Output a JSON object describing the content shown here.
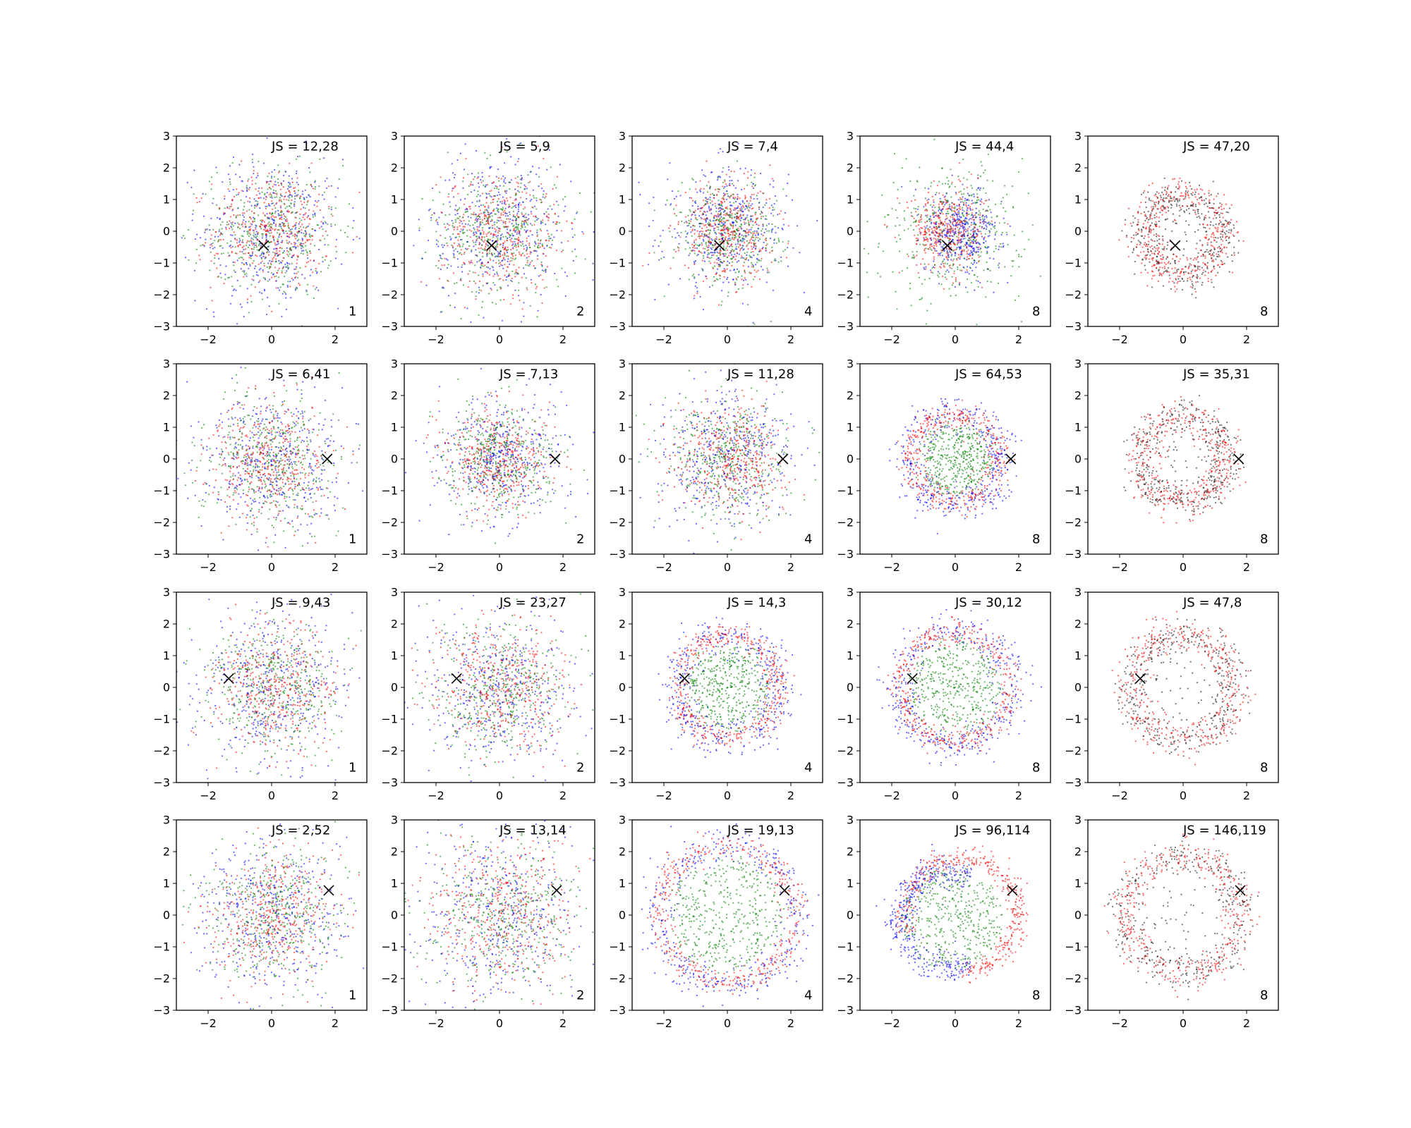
{
  "figure": {
    "colors": {
      "red": "#ff0000",
      "green": "#008000",
      "blue": "#0000ff",
      "black": "#000000",
      "marker": "#000000"
    }
  },
  "chart_data": [
    {
      "type": "scatter",
      "row": 0,
      "col": 0,
      "js_label": "JS = 12,28",
      "corner_label": "1",
      "xlim": [
        -3,
        3
      ],
      "ylim": [
        -3,
        3
      ],
      "xticks": [
        -2,
        0,
        2
      ],
      "yticks": [
        -3,
        -2,
        -1,
        0,
        1,
        2,
        3
      ],
      "marker": {
        "x": -0.25,
        "y": -0.45
      },
      "pattern": {
        "kind": "blob",
        "colors": [
          "red",
          "green",
          "blue"
        ],
        "radius": 1.0,
        "center": [
          0,
          0
        ]
      },
      "series": [
        {
          "color": "red"
        },
        {
          "color": "green"
        },
        {
          "color": "blue"
        }
      ]
    },
    {
      "type": "scatter",
      "row": 0,
      "col": 1,
      "js_label": "JS = 5,9",
      "corner_label": "2",
      "xlim": [
        -3,
        3
      ],
      "ylim": [
        -3,
        3
      ],
      "xticks": [
        -2,
        0,
        2
      ],
      "yticks": [
        -3,
        -2,
        -1,
        0,
        1,
        2,
        3
      ],
      "marker": {
        "x": -0.25,
        "y": -0.45
      },
      "pattern": {
        "kind": "blob",
        "colors": [
          "red",
          "green",
          "blue"
        ],
        "radius": 1.0,
        "center": [
          0,
          0
        ]
      },
      "series": [
        {
          "color": "red"
        },
        {
          "color": "green"
        },
        {
          "color": "blue"
        }
      ]
    },
    {
      "type": "scatter",
      "row": 0,
      "col": 2,
      "js_label": "JS = 7,4",
      "corner_label": "4",
      "xlim": [
        -3,
        3
      ],
      "ylim": [
        -3,
        3
      ],
      "xticks": [
        -2,
        0,
        2
      ],
      "yticks": [
        -3,
        -2,
        -1,
        0,
        1,
        2,
        3
      ],
      "marker": {
        "x": -0.25,
        "y": -0.45
      },
      "pattern": {
        "kind": "blob",
        "colors": [
          "red",
          "green",
          "blue"
        ],
        "radius": 0.8,
        "center": [
          0,
          0
        ]
      },
      "series": [
        {
          "color": "red"
        },
        {
          "color": "green"
        },
        {
          "color": "blue"
        }
      ]
    },
    {
      "type": "scatter",
      "row": 0,
      "col": 3,
      "js_label": "JS = 44,4",
      "corner_label": "8",
      "xlim": [
        -3,
        3
      ],
      "ylim": [
        -3,
        3
      ],
      "xticks": [
        -2,
        0,
        2
      ],
      "yticks": [
        -3,
        -2,
        -1,
        0,
        1,
        2,
        3
      ],
      "marker": {
        "x": -0.25,
        "y": -0.45
      },
      "pattern": {
        "kind": "blob3",
        "colors": [
          "red",
          "green",
          "blue"
        ],
        "radius": 0.9,
        "center": [
          0,
          0
        ]
      },
      "series": [
        {
          "color": "red"
        },
        {
          "color": "green"
        },
        {
          "color": "blue"
        }
      ]
    },
    {
      "type": "scatter",
      "row": 0,
      "col": 4,
      "js_label": "JS = 47,20",
      "corner_label": "8",
      "xlim": [
        -3,
        3
      ],
      "ylim": [
        -3,
        3
      ],
      "xticks": [
        -2,
        0,
        2
      ],
      "yticks": [
        -3,
        -2,
        -1,
        0,
        1,
        2,
        3
      ],
      "marker": {
        "x": -0.25,
        "y": -0.45
      },
      "pattern": {
        "kind": "ring2",
        "colors": [
          "red",
          "black"
        ],
        "radius": 1.25,
        "center": [
          0,
          -0.1
        ]
      },
      "series": [
        {
          "color": "red"
        },
        {
          "color": "black"
        }
      ]
    },
    {
      "type": "scatter",
      "row": 1,
      "col": 0,
      "js_label": "JS = 6,41",
      "corner_label": "1",
      "xlim": [
        -3,
        3
      ],
      "ylim": [
        -3,
        3
      ],
      "xticks": [
        -2,
        0,
        2
      ],
      "yticks": [
        -3,
        -2,
        -1,
        0,
        1,
        2,
        3
      ],
      "marker": {
        "x": 1.75,
        "y": 0.0
      },
      "pattern": {
        "kind": "blob",
        "colors": [
          "red",
          "green",
          "blue"
        ],
        "radius": 1.0,
        "center": [
          0,
          0
        ]
      },
      "series": [
        {
          "color": "red"
        },
        {
          "color": "green"
        },
        {
          "color": "blue"
        }
      ]
    },
    {
      "type": "scatter",
      "row": 1,
      "col": 1,
      "js_label": "JS = 7,13",
      "corner_label": "2",
      "xlim": [
        -3,
        3
      ],
      "ylim": [
        -3,
        3
      ],
      "xticks": [
        -2,
        0,
        2
      ],
      "yticks": [
        -3,
        -2,
        -1,
        0,
        1,
        2,
        3
      ],
      "marker": {
        "x": 1.75,
        "y": 0.0
      },
      "pattern": {
        "kind": "blob",
        "colors": [
          "red",
          "green",
          "blue"
        ],
        "radius": 0.85,
        "center": [
          0,
          0
        ]
      },
      "series": [
        {
          "color": "red"
        },
        {
          "color": "green"
        },
        {
          "color": "blue"
        }
      ]
    },
    {
      "type": "scatter",
      "row": 1,
      "col": 2,
      "js_label": "JS = 11,28",
      "corner_label": "4",
      "xlim": [
        -3,
        3
      ],
      "ylim": [
        -3,
        3
      ],
      "xticks": [
        -2,
        0,
        2
      ],
      "yticks": [
        -3,
        -2,
        -1,
        0,
        1,
        2,
        3
      ],
      "marker": {
        "x": 1.75,
        "y": 0.0
      },
      "pattern": {
        "kind": "blob",
        "colors": [
          "red",
          "green",
          "blue"
        ],
        "radius": 0.95,
        "center": [
          0,
          0
        ]
      },
      "series": [
        {
          "color": "red"
        },
        {
          "color": "green"
        },
        {
          "color": "blue"
        }
      ]
    },
    {
      "type": "scatter",
      "row": 1,
      "col": 3,
      "js_label": "JS = 64,53",
      "corner_label": "8",
      "xlim": [
        -3,
        3
      ],
      "ylim": [
        -3,
        3
      ],
      "xticks": [
        -2,
        0,
        2
      ],
      "yticks": [
        -3,
        -2,
        -1,
        0,
        1,
        2,
        3
      ],
      "marker": {
        "x": 1.75,
        "y": 0.0
      },
      "pattern": {
        "kind": "ring3",
        "colors": [
          "red",
          "green",
          "blue"
        ],
        "radius": 1.35,
        "center": [
          0,
          0
        ]
      },
      "series": [
        {
          "color": "red"
        },
        {
          "color": "green"
        },
        {
          "color": "blue"
        }
      ]
    },
    {
      "type": "scatter",
      "row": 1,
      "col": 4,
      "js_label": "JS = 35,31",
      "corner_label": "8",
      "xlim": [
        -3,
        3
      ],
      "ylim": [
        -3,
        3
      ],
      "xticks": [
        -2,
        0,
        2
      ],
      "yticks": [
        -3,
        -2,
        -1,
        0,
        1,
        2,
        3
      ],
      "marker": {
        "x": 1.75,
        "y": 0.0
      },
      "pattern": {
        "kind": "ring2",
        "colors": [
          "red",
          "black"
        ],
        "radius": 1.35,
        "center": [
          0,
          0
        ]
      },
      "series": [
        {
          "color": "red"
        },
        {
          "color": "black"
        }
      ]
    },
    {
      "type": "scatter",
      "row": 2,
      "col": 0,
      "js_label": "JS = 9,43",
      "corner_label": "1",
      "xlim": [
        -3,
        3
      ],
      "ylim": [
        -3,
        3
      ],
      "xticks": [
        -2,
        0,
        2
      ],
      "yticks": [
        -3,
        -2,
        -1,
        0,
        1,
        2,
        3
      ],
      "marker": {
        "x": -1.35,
        "y": 0.28
      },
      "pattern": {
        "kind": "blob",
        "colors": [
          "red",
          "green",
          "blue"
        ],
        "radius": 1.05,
        "center": [
          0,
          0
        ]
      },
      "series": [
        {
          "color": "red"
        },
        {
          "color": "green"
        },
        {
          "color": "blue"
        }
      ]
    },
    {
      "type": "scatter",
      "row": 2,
      "col": 1,
      "js_label": "JS = 23,27",
      "corner_label": "2",
      "xlim": [
        -3,
        3
      ],
      "ylim": [
        -3,
        3
      ],
      "xticks": [
        -2,
        0,
        2
      ],
      "yticks": [
        -3,
        -2,
        -1,
        0,
        1,
        2,
        3
      ],
      "marker": {
        "x": -1.35,
        "y": 0.28
      },
      "pattern": {
        "kind": "blob",
        "colors": [
          "red",
          "green",
          "blue"
        ],
        "radius": 1.1,
        "center": [
          0,
          0
        ]
      },
      "series": [
        {
          "color": "red"
        },
        {
          "color": "green"
        },
        {
          "color": "blue"
        }
      ]
    },
    {
      "type": "scatter",
      "row": 2,
      "col": 2,
      "js_label": "JS = 14,3",
      "corner_label": "4",
      "xlim": [
        -3,
        3
      ],
      "ylim": [
        -3,
        3
      ],
      "xticks": [
        -2,
        0,
        2
      ],
      "yticks": [
        -3,
        -2,
        -1,
        0,
        1,
        2,
        3
      ],
      "marker": {
        "x": -1.35,
        "y": 0.28
      },
      "pattern": {
        "kind": "ring3",
        "colors": [
          "red",
          "green",
          "blue"
        ],
        "radius": 1.55,
        "center": [
          0,
          0
        ]
      },
      "series": [
        {
          "color": "red"
        },
        {
          "color": "green"
        },
        {
          "color": "blue"
        }
      ]
    },
    {
      "type": "scatter",
      "row": 2,
      "col": 3,
      "js_label": "JS = 30,12",
      "corner_label": "8",
      "xlim": [
        -3,
        3
      ],
      "ylim": [
        -3,
        3
      ],
      "xticks": [
        -2,
        0,
        2
      ],
      "yticks": [
        -3,
        -2,
        -1,
        0,
        1,
        2,
        3
      ],
      "marker": {
        "x": -1.35,
        "y": 0.28
      },
      "pattern": {
        "kind": "ring3",
        "colors": [
          "red",
          "green",
          "blue"
        ],
        "radius": 1.7,
        "center": [
          0,
          0
        ]
      },
      "series": [
        {
          "color": "red"
        },
        {
          "color": "green"
        },
        {
          "color": "blue"
        }
      ]
    },
    {
      "type": "scatter",
      "row": 2,
      "col": 4,
      "js_label": "JS = 47,8",
      "corner_label": "8",
      "xlim": [
        -3,
        3
      ],
      "ylim": [
        -3,
        3
      ],
      "xticks": [
        -2,
        0,
        2
      ],
      "yticks": [
        -3,
        -2,
        -1,
        0,
        1,
        2,
        3
      ],
      "marker": {
        "x": -1.35,
        "y": 0.28
      },
      "pattern": {
        "kind": "ring2",
        "colors": [
          "red",
          "black"
        ],
        "radius": 1.65,
        "center": [
          0,
          0
        ]
      },
      "series": [
        {
          "color": "red"
        },
        {
          "color": "black"
        }
      ]
    },
    {
      "type": "scatter",
      "row": 3,
      "col": 0,
      "js_label": "JS = 2,52",
      "corner_label": "1",
      "xlim": [
        -3,
        3
      ],
      "ylim": [
        -3,
        3
      ],
      "xticks": [
        -2,
        0,
        2
      ],
      "yticks": [
        -3,
        -2,
        -1,
        0,
        1,
        2,
        3
      ],
      "marker": {
        "x": 1.8,
        "y": 0.78
      },
      "pattern": {
        "kind": "blob",
        "colors": [
          "red",
          "green",
          "blue"
        ],
        "radius": 1.05,
        "center": [
          0,
          0
        ]
      },
      "series": [
        {
          "color": "red"
        },
        {
          "color": "green"
        },
        {
          "color": "blue"
        }
      ]
    },
    {
      "type": "scatter",
      "row": 3,
      "col": 1,
      "js_label": "JS = 13,14",
      "corner_label": "2",
      "xlim": [
        -3,
        3
      ],
      "ylim": [
        -3,
        3
      ],
      "xticks": [
        -2,
        0,
        2
      ],
      "yticks": [
        -3,
        -2,
        -1,
        0,
        1,
        2,
        3
      ],
      "marker": {
        "x": 1.8,
        "y": 0.78
      },
      "pattern": {
        "kind": "blob",
        "colors": [
          "red",
          "green",
          "blue"
        ],
        "radius": 1.2,
        "center": [
          0,
          0
        ]
      },
      "series": [
        {
          "color": "red"
        },
        {
          "color": "green"
        },
        {
          "color": "blue"
        }
      ]
    },
    {
      "type": "scatter",
      "row": 3,
      "col": 2,
      "js_label": "JS = 19,13",
      "corner_label": "4",
      "xlim": [
        -3,
        3
      ],
      "ylim": [
        -3,
        3
      ],
      "xticks": [
        -2,
        0,
        2
      ],
      "yticks": [
        -3,
        -2,
        -1,
        0,
        1,
        2,
        3
      ],
      "marker": {
        "x": 1.8,
        "y": 0.78
      },
      "pattern": {
        "kind": "ring3",
        "colors": [
          "red",
          "green",
          "blue"
        ],
        "radius": 2.1,
        "center": [
          0,
          0
        ]
      },
      "series": [
        {
          "color": "red"
        },
        {
          "color": "green"
        },
        {
          "color": "blue"
        }
      ]
    },
    {
      "type": "scatter",
      "row": 3,
      "col": 3,
      "js_label": "JS = 96,114",
      "corner_label": "8",
      "xlim": [
        -3,
        3
      ],
      "ylim": [
        -3,
        3
      ],
      "xticks": [
        -2,
        0,
        2
      ],
      "yticks": [
        -3,
        -2,
        -1,
        0,
        1,
        2,
        3
      ],
      "marker": {
        "x": 1.8,
        "y": 0.78
      },
      "pattern": {
        "kind": "crescent",
        "colors": [
          "red",
          "green",
          "blue"
        ],
        "radius": 1.8,
        "center": [
          0,
          0
        ]
      },
      "series": [
        {
          "color": "red"
        },
        {
          "color": "green"
        },
        {
          "color": "blue"
        }
      ]
    },
    {
      "type": "scatter",
      "row": 3,
      "col": 4,
      "js_label": "JS = 146,119",
      "corner_label": "8",
      "xlim": [
        -3,
        3
      ],
      "ylim": [
        -3,
        3
      ],
      "xticks": [
        -2,
        0,
        2
      ],
      "yticks": [
        -3,
        -2,
        -1,
        0,
        1,
        2,
        3
      ],
      "marker": {
        "x": 1.8,
        "y": 0.78
      },
      "pattern": {
        "kind": "ring2",
        "colors": [
          "red",
          "black"
        ],
        "radius": 1.85,
        "center": [
          0,
          0
        ]
      },
      "series": [
        {
          "color": "red"
        },
        {
          "color": "black"
        }
      ]
    }
  ]
}
